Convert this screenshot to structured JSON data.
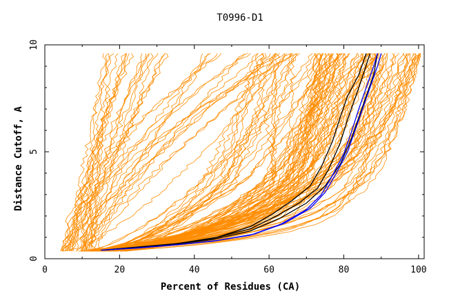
{
  "chart_data": {
    "type": "line",
    "title": "T0996-D1",
    "xlabel": "Percent of Residues (CA)",
    "ylabel": "Distance Cutoff, A",
    "xlim": [
      0,
      100
    ],
    "ylim": [
      0,
      10
    ],
    "x_ticks": [
      "0",
      "20",
      "40",
      "60",
      "80",
      "100"
    ],
    "y_ticks": [
      "0",
      "5",
      "10"
    ],
    "grid": false,
    "legend": "none",
    "colors": {
      "orange": "#ff8c00",
      "black": "#000000",
      "blue": "#0000ff"
    },
    "highlighted_series": [
      {
        "color": "#000000",
        "points": [
          [
            15.0,
            0.4
          ],
          [
            25,
            0.55
          ],
          [
            35,
            0.7
          ],
          [
            45,
            0.95
          ],
          [
            55,
            1.4
          ],
          [
            62,
            2.0
          ],
          [
            68,
            2.6
          ],
          [
            73,
            3.3
          ],
          [
            76,
            4.2
          ],
          [
            79,
            5.4
          ],
          [
            81,
            6.5
          ],
          [
            83,
            7.5
          ],
          [
            85,
            8.5
          ],
          [
            87,
            9.6
          ]
        ]
      },
      {
        "color": "#000000",
        "points": [
          [
            16.0,
            0.4
          ],
          [
            26,
            0.55
          ],
          [
            36,
            0.72
          ],
          [
            46,
            1.0
          ],
          [
            55,
            1.5
          ],
          [
            61,
            2.1
          ],
          [
            66,
            2.7
          ],
          [
            71,
            3.4
          ],
          [
            74,
            4.3
          ],
          [
            77,
            5.5
          ],
          [
            79,
            6.6
          ],
          [
            81,
            7.6
          ],
          [
            84,
            8.6
          ],
          [
            86,
            9.6
          ]
        ]
      },
      {
        "color": "#000000",
        "points": [
          [
            15.5,
            0.4
          ],
          [
            25,
            0.52
          ],
          [
            35,
            0.68
          ],
          [
            45,
            0.9
          ],
          [
            55,
            1.3
          ],
          [
            63,
            1.9
          ],
          [
            70,
            2.6
          ],
          [
            75,
            3.4
          ],
          [
            79,
            4.4
          ],
          [
            82,
            5.6
          ],
          [
            84,
            6.6
          ],
          [
            86,
            7.6
          ],
          [
            88,
            8.6
          ],
          [
            89,
            9.6
          ]
        ]
      },
      {
        "color": "#0000ff",
        "points": [
          [
            15.0,
            0.4
          ],
          [
            25,
            0.5
          ],
          [
            35,
            0.65
          ],
          [
            45,
            0.82
          ],
          [
            55,
            1.1
          ],
          [
            63,
            1.6
          ],
          [
            70,
            2.3
          ],
          [
            74,
            3.0
          ],
          [
            77,
            3.9
          ],
          [
            80,
            4.9
          ],
          [
            82,
            5.9
          ],
          [
            84,
            7.0
          ],
          [
            86,
            8.0
          ],
          [
            88,
            9.0
          ],
          [
            89,
            9.6
          ]
        ]
      },
      {
        "color": "#0000ff",
        "points": [
          [
            15.5,
            0.4
          ],
          [
            26,
            0.52
          ],
          [
            36,
            0.66
          ],
          [
            46,
            0.85
          ],
          [
            56,
            1.15
          ],
          [
            64,
            1.65
          ],
          [
            71,
            2.35
          ],
          [
            75,
            3.1
          ],
          [
            78,
            4.0
          ],
          [
            81,
            5.0
          ],
          [
            83,
            6.0
          ],
          [
            85,
            7.0
          ],
          [
            87,
            8.0
          ],
          [
            89,
            9.0
          ],
          [
            90,
            9.6
          ]
        ]
      }
    ]
  }
}
